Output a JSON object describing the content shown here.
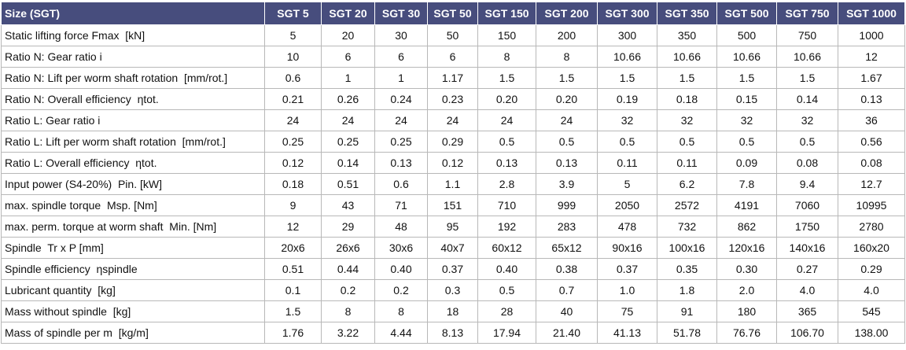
{
  "table": {
    "header": [
      "Size (SGT)",
      "SGT 5",
      "SGT 20",
      "SGT 30",
      "SGT 50",
      "SGT 150",
      "SGT 200",
      "SGT 300",
      "SGT 350",
      "SGT 500",
      "SGT 750",
      "SGT 1000"
    ],
    "rows": [
      [
        "Static lifting force Fmax  [kN]",
        "5",
        "20",
        "30",
        "50",
        "150",
        "200",
        "300",
        "350",
        "500",
        "750",
        "1000"
      ],
      [
        "Ratio N: Gear ratio i",
        "10",
        "6",
        "6",
        "6",
        "8",
        "8",
        "10.66",
        "10.66",
        "10.66",
        "10.66",
        "12"
      ],
      [
        "Ratio N: Lift per worm shaft rotation  [mm/rot.]",
        "0.6",
        "1",
        "1",
        "1.17",
        "1.5",
        "1.5",
        "1.5",
        "1.5",
        "1.5",
        "1.5",
        "1.67"
      ],
      [
        "Ratio N: Overall efficiency  ηtot.",
        "0.21",
        "0.26",
        "0.24",
        "0.23",
        "0.20",
        "0.20",
        "0.19",
        "0.18",
        "0.15",
        "0.14",
        "0.13"
      ],
      [
        "Ratio L: Gear ratio i",
        "24",
        "24",
        "24",
        "24",
        "24",
        "24",
        "32",
        "32",
        "32",
        "32",
        "36"
      ],
      [
        "Ratio L: Lift per worm shaft rotation  [mm/rot.]",
        "0.25",
        "0.25",
        "0.25",
        "0.29",
        "0.5",
        "0.5",
        "0.5",
        "0.5",
        "0.5",
        "0.5",
        "0.56"
      ],
      [
        "Ratio L: Overall efficiency  ηtot.",
        "0.12",
        "0.14",
        "0.13",
        "0.12",
        "0.13",
        "0.13",
        "0.11",
        "0.11",
        "0.09",
        "0.08",
        "0.08"
      ],
      [
        "Input power (S4-20%)  Pin. [kW]",
        "0.18",
        "0.51",
        "0.6",
        "1.1",
        "2.8",
        "3.9",
        "5",
        "6.2",
        "7.8",
        "9.4",
        "12.7"
      ],
      [
        "max. spindle torque  Msp. [Nm]",
        "9",
        "43",
        "71",
        "151",
        "710",
        "999",
        "2050",
        "2572",
        "4191",
        "7060",
        "10995"
      ],
      [
        "max. perm. torque at worm shaft  Min. [Nm]",
        "12",
        "29",
        "48",
        "95",
        "192",
        "283",
        "478",
        "732",
        "862",
        "1750",
        "2780"
      ],
      [
        "Spindle  Tr x P [mm]",
        "20x6",
        "26x6",
        "30x6",
        "40x7",
        "60x12",
        "65x12",
        "90x16",
        "100x16",
        "120x16",
        "140x16",
        "160x20"
      ],
      [
        "Spindle efficiency  ηspindle",
        "0.51",
        "0.44",
        "0.40",
        "0.37",
        "0.40",
        "0.38",
        "0.37",
        "0.35",
        "0.30",
        "0.27",
        "0.29"
      ],
      [
        "Lubricant quantity  [kg]",
        "0.1",
        "0.2",
        "0.2",
        "0.3",
        "0.5",
        "0.7",
        "1.0",
        "1.8",
        "2.0",
        "4.0",
        "4.0"
      ],
      [
        "Mass without spindle  [kg]",
        "1.5",
        "8",
        "8",
        "18",
        "28",
        "40",
        "75",
        "91",
        "180",
        "365",
        "545"
      ],
      [
        "Mass of spindle per m  [kg/m]",
        "1.76",
        "3.22",
        "4.44",
        "8.13",
        "17.94",
        "21.40",
        "41.13",
        "51.78",
        "76.76",
        "106.70",
        "138.00"
      ]
    ]
  }
}
